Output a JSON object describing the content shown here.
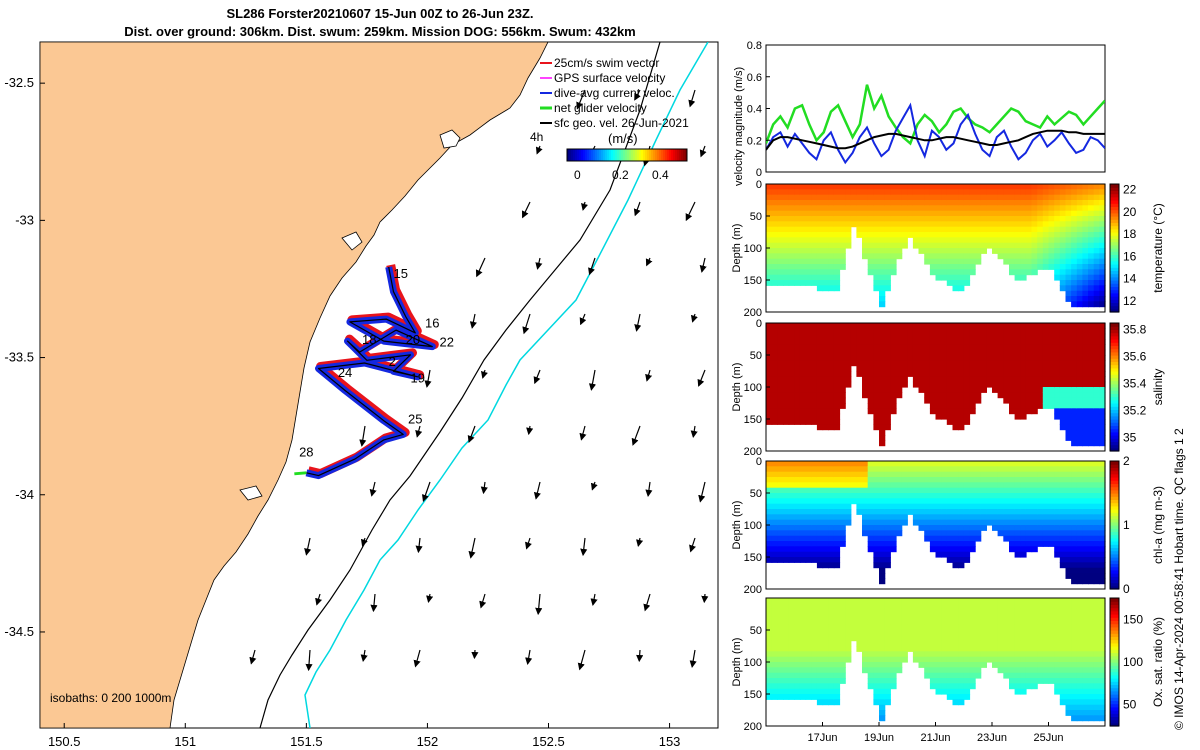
{
  "title": {
    "line1": "SL286 Forster20210607 15-Jun 00Z to 26-Jun 23Z.",
    "line2": "Dist. over ground: 306km. Dist. swum: 259km. Mission DOG: 556km. Swum: 432km"
  },
  "credit": "© IMOS 14-Apr-2024 00:58:41 Hobart time. QC flags 1  2",
  "colors": {
    "land": "#fbc894",
    "sea": "#ffffff",
    "isobath_200": "#00d8e0",
    "isobath_1000": "#000000",
    "track_swim": "#e8141c",
    "track_dac": "#1428e0",
    "net_glider": "#22dd22",
    "gps_surface": "#ff44ff",
    "sfc_geo_vel": "#000000"
  },
  "chart_data": [
    {
      "type": "map",
      "name": "glider-track-map",
      "xlim": [
        150.4,
        153.2
      ],
      "ylim": [
        -34.85,
        -32.35
      ],
      "xticks": [
        150.5,
        151,
        151.5,
        152,
        152.5,
        153
      ],
      "yticks": [
        -32.5,
        -33,
        -33.5,
        -34,
        -34.5
      ],
      "legend": {
        "placement": "top-right",
        "entries": [
          "25cm/s swim vector",
          "GPS surface velocity",
          "dive-avg current veloc.",
          "net glider velocity",
          "sfc geo. vel. 26-Jun-2021"
        ],
        "extra_label": "4h"
      },
      "colorbar": {
        "label": "(m/s)",
        "ticks": [
          "0",
          "0.2",
          "0.4"
        ],
        "range": [
          0,
          0.5
        ]
      },
      "isobaths_label": "isobaths: 0   200  1000m",
      "day_labels": [
        {
          "text": "15",
          "lon": 151.86,
          "lat": -33.21
        },
        {
          "text": "16",
          "lon": 151.99,
          "lat": -33.39
        },
        {
          "text": "18",
          "lon": 151.73,
          "lat": -33.45
        },
        {
          "text": "20",
          "lon": 151.91,
          "lat": -33.45
        },
        {
          "text": "22",
          "lon": 152.05,
          "lat": -33.46
        },
        {
          "text": "2",
          "lon": 151.84,
          "lat": -33.53
        },
        {
          "text": "24",
          "lon": 151.63,
          "lat": -33.57
        },
        {
          "text": "19",
          "lon": 151.93,
          "lat": -33.59
        },
        {
          "text": "25",
          "lon": 151.92,
          "lat": -33.74
        },
        {
          "text": "28",
          "lon": 151.47,
          "lat": -33.86
        }
      ],
      "track": [
        [
          151.84,
          -33.17
        ],
        [
          151.86,
          -33.26
        ],
        [
          151.91,
          -33.35
        ],
        [
          151.95,
          -33.41
        ],
        [
          151.83,
          -33.36
        ],
        [
          151.68,
          -33.37
        ],
        [
          151.82,
          -33.44
        ],
        [
          152.02,
          -33.46
        ],
        [
          151.87,
          -33.4
        ],
        [
          151.72,
          -33.48
        ],
        [
          151.67,
          -33.44
        ],
        [
          151.75,
          -33.51
        ],
        [
          151.93,
          -33.49
        ],
        [
          151.86,
          -33.55
        ],
        [
          151.96,
          -33.57
        ],
        [
          151.74,
          -33.52
        ],
        [
          151.55,
          -33.54
        ],
        [
          151.66,
          -33.62
        ],
        [
          151.82,
          -33.73
        ],
        [
          151.9,
          -33.78
        ],
        [
          151.82,
          -33.8
        ],
        [
          151.7,
          -33.87
        ],
        [
          151.55,
          -33.93
        ],
        [
          151.5,
          -33.92
        ]
      ]
    },
    {
      "type": "line",
      "name": "velocity-magnitude",
      "ylabel": "velocity magnitude (m/s)",
      "ylim": [
        0,
        0.8
      ],
      "yticks": [
        "0",
        "0.2",
        "0.4",
        "0.6",
        "0.8"
      ],
      "x_start_day": 15.0,
      "x_end_day": 27.0,
      "series": [
        {
          "color": "#22dd22",
          "values": [
            0.18,
            0.3,
            0.35,
            0.28,
            0.4,
            0.42,
            0.3,
            0.2,
            0.25,
            0.38,
            0.42,
            0.32,
            0.22,
            0.3,
            0.55,
            0.4,
            0.48,
            0.35,
            0.28,
            0.22,
            0.18,
            0.3,
            0.36,
            0.32,
            0.25,
            0.3,
            0.38,
            0.4,
            0.34,
            0.3,
            0.28,
            0.25,
            0.3,
            0.35,
            0.4,
            0.38,
            0.32,
            0.3,
            0.28,
            0.35,
            0.3,
            0.34,
            0.38,
            0.36,
            0.3,
            0.35,
            0.4,
            0.45
          ]
        },
        {
          "color": "#1428e0",
          "values": [
            0.14,
            0.22,
            0.25,
            0.16,
            0.24,
            0.18,
            0.12,
            0.08,
            0.2,
            0.25,
            0.14,
            0.06,
            0.12,
            0.22,
            0.28,
            0.18,
            0.1,
            0.14,
            0.26,
            0.34,
            0.42,
            0.2,
            0.1,
            0.26,
            0.22,
            0.14,
            0.18,
            0.3,
            0.36,
            0.24,
            0.14,
            0.1,
            0.22,
            0.26,
            0.16,
            0.08,
            0.12,
            0.2,
            0.24,
            0.16,
            0.2,
            0.25,
            0.18,
            0.12,
            0.14,
            0.22,
            0.2,
            0.15
          ]
        },
        {
          "color": "#000000",
          "values": [
            0.14,
            0.2,
            0.22,
            0.22,
            0.21,
            0.2,
            0.19,
            0.18,
            0.17,
            0.16,
            0.15,
            0.15,
            0.16,
            0.18,
            0.2,
            0.22,
            0.23,
            0.24,
            0.24,
            0.23,
            0.22,
            0.21,
            0.2,
            0.2,
            0.21,
            0.22,
            0.22,
            0.21,
            0.2,
            0.19,
            0.18,
            0.17,
            0.17,
            0.18,
            0.19,
            0.2,
            0.22,
            0.24,
            0.25,
            0.26,
            0.26,
            0.26,
            0.25,
            0.25,
            0.24,
            0.24,
            0.24,
            0.24
          ]
        }
      ]
    },
    {
      "type": "heatmap",
      "name": "temperature-section",
      "ylabel": "Depth (m)",
      "ylim": [
        200,
        0
      ],
      "yticks": [
        "0",
        "50",
        "100",
        "150",
        "200"
      ],
      "colorbar_label": "temperature (°C)",
      "colorbar_ticks": [
        "12",
        "14",
        "16",
        "18",
        "20",
        "22"
      ],
      "clim": [
        11,
        22.5
      ]
    },
    {
      "type": "heatmap",
      "name": "salinity-section",
      "ylabel": "Depth (m)",
      "ylim": [
        200,
        0
      ],
      "yticks": [
        "0",
        "50",
        "100",
        "150",
        "200"
      ],
      "colorbar_label": "salinity",
      "colorbar_ticks": [
        "35",
        "35.2",
        "35.4",
        "35.6",
        "35.8"
      ],
      "clim": [
        34.9,
        35.85
      ]
    },
    {
      "type": "heatmap",
      "name": "chl-a-section",
      "ylabel": "Depth (m)",
      "ylim": [
        200,
        0
      ],
      "yticks": [
        "0",
        "50",
        "100",
        "150",
        "200"
      ],
      "colorbar_label": "chl-a (mg m-3)",
      "colorbar_ticks": [
        "0",
        "1",
        "2"
      ],
      "clim": [
        0,
        2
      ]
    },
    {
      "type": "heatmap",
      "name": "oxygen-section",
      "ylabel": "Depth (m)",
      "ylim": [
        200,
        0
      ],
      "yticks": [
        "50",
        "100",
        "150",
        "200"
      ],
      "xticks": [
        "17Jun",
        "19Jun",
        "21Jun",
        "23Jun",
        "25Jun"
      ],
      "colorbar_label": "Ox. sat. ratio (%)",
      "colorbar_ticks": [
        "50",
        "100",
        "150"
      ],
      "clim": [
        25,
        175
      ]
    }
  ]
}
